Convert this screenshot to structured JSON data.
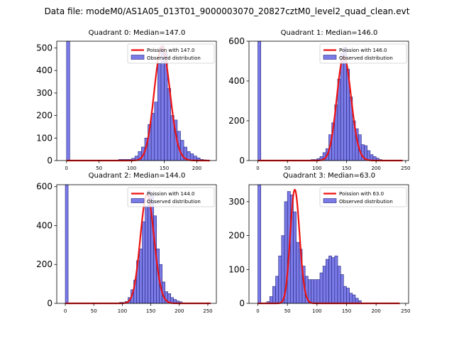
{
  "figure": {
    "suptitle": "Data file: modeM0/AS1A05_013T01_9000003070_20827cztM0_level2_quad_clean.evt"
  },
  "colors": {
    "bar_fill": "#7b7be8",
    "bar_edge": "#24247a",
    "poisson_line": "#ee1111",
    "axis": "#000000"
  },
  "chart_data": [
    {
      "type": "bar",
      "title": "Quadrant 0: Median=147.0",
      "xlim": [
        -15,
        230
      ],
      "ylim": [
        0,
        530
      ],
      "xticks": [
        0,
        50,
        100,
        150,
        200
      ],
      "yticks": [
        0,
        100,
        200,
        300,
        400,
        500
      ],
      "bin_width": 5,
      "bins": [
        {
          "x": 0,
          "y": 530
        },
        {
          "x": 80,
          "y": 5
        },
        {
          "x": 85,
          "y": 5
        },
        {
          "x": 90,
          "y": 5
        },
        {
          "x": 95,
          "y": 5
        },
        {
          "x": 100,
          "y": 10
        },
        {
          "x": 105,
          "y": 20
        },
        {
          "x": 110,
          "y": 40
        },
        {
          "x": 115,
          "y": 60
        },
        {
          "x": 120,
          "y": 100
        },
        {
          "x": 125,
          "y": 160
        },
        {
          "x": 130,
          "y": 210
        },
        {
          "x": 135,
          "y": 260
        },
        {
          "x": 140,
          "y": 430
        },
        {
          "x": 145,
          "y": 510
        },
        {
          "x": 150,
          "y": 480
        },
        {
          "x": 155,
          "y": 320
        },
        {
          "x": 160,
          "y": 200
        },
        {
          "x": 165,
          "y": 180
        },
        {
          "x": 170,
          "y": 130
        },
        {
          "x": 175,
          "y": 90
        },
        {
          "x": 180,
          "y": 60
        },
        {
          "x": 185,
          "y": 40
        },
        {
          "x": 190,
          "y": 30
        },
        {
          "x": 195,
          "y": 20
        },
        {
          "x": 200,
          "y": 12
        },
        {
          "x": 205,
          "y": 5
        },
        {
          "x": 210,
          "y": 3
        }
      ],
      "poisson": {
        "mean": 147.0,
        "x_range": [
          0,
          220
        ],
        "label": "Poission with 147.0",
        "peak": 505
      },
      "legend": [
        "Poission with 147.0",
        "Observed distribution"
      ]
    },
    {
      "type": "bar",
      "title": "Quadrant 1: Median=146.0",
      "xlim": [
        -15,
        255
      ],
      "ylim": [
        0,
        600
      ],
      "xticks": [
        0,
        50,
        100,
        150,
        200,
        250
      ],
      "yticks": [
        0,
        200,
        400,
        600
      ],
      "bin_width": 5,
      "bins": [
        {
          "x": 0,
          "y": 600
        },
        {
          "x": 90,
          "y": 5
        },
        {
          "x": 95,
          "y": 5
        },
        {
          "x": 100,
          "y": 10
        },
        {
          "x": 105,
          "y": 20
        },
        {
          "x": 110,
          "y": 40
        },
        {
          "x": 115,
          "y": 60
        },
        {
          "x": 120,
          "y": 130
        },
        {
          "x": 125,
          "y": 190
        },
        {
          "x": 130,
          "y": 280
        },
        {
          "x": 135,
          "y": 410
        },
        {
          "x": 140,
          "y": 540
        },
        {
          "x": 145,
          "y": 570
        },
        {
          "x": 150,
          "y": 460
        },
        {
          "x": 155,
          "y": 320
        },
        {
          "x": 160,
          "y": 200
        },
        {
          "x": 165,
          "y": 160
        },
        {
          "x": 170,
          "y": 130
        },
        {
          "x": 175,
          "y": 80
        },
        {
          "x": 180,
          "y": 75
        },
        {
          "x": 185,
          "y": 50
        },
        {
          "x": 190,
          "y": 30
        },
        {
          "x": 195,
          "y": 20
        },
        {
          "x": 200,
          "y": 12
        },
        {
          "x": 205,
          "y": 5
        }
      ],
      "poisson": {
        "mean": 146.0,
        "x_range": [
          0,
          245
        ],
        "label": "Poission with 146.0",
        "peak": 525
      },
      "legend": [
        "Poission with 146.0",
        "Observed distribution"
      ]
    },
    {
      "type": "bar",
      "title": "Quadrant 2: Median=144.0",
      "xlim": [
        -15,
        265
      ],
      "ylim": [
        0,
        610
      ],
      "xticks": [
        0,
        50,
        100,
        150,
        200,
        250
      ],
      "yticks": [
        0,
        200,
        400,
        600
      ],
      "bin_width": 5,
      "bins": [
        {
          "x": 0,
          "y": 610
        },
        {
          "x": 95,
          "y": 5
        },
        {
          "x": 100,
          "y": 5
        },
        {
          "x": 105,
          "y": 10
        },
        {
          "x": 110,
          "y": 30
        },
        {
          "x": 115,
          "y": 70
        },
        {
          "x": 120,
          "y": 120
        },
        {
          "x": 125,
          "y": 220
        },
        {
          "x": 130,
          "y": 280
        },
        {
          "x": 135,
          "y": 420
        },
        {
          "x": 140,
          "y": 500
        },
        {
          "x": 145,
          "y": 580
        },
        {
          "x": 150,
          "y": 560
        },
        {
          "x": 155,
          "y": 450
        },
        {
          "x": 160,
          "y": 280
        },
        {
          "x": 165,
          "y": 200
        },
        {
          "x": 170,
          "y": 110
        },
        {
          "x": 175,
          "y": 60
        },
        {
          "x": 180,
          "y": 50
        },
        {
          "x": 185,
          "y": 30
        },
        {
          "x": 190,
          "y": 20
        },
        {
          "x": 195,
          "y": 12
        },
        {
          "x": 200,
          "y": 8
        }
      ],
      "poisson": {
        "mean": 144.0,
        "x_range": [
          0,
          255
        ],
        "label": "Poission with 144.0",
        "peak": 560
      },
      "legend": [
        "Poission with 144.0",
        "Observed distribution"
      ]
    },
    {
      "type": "bar",
      "title": "Quadrant 3: Median=63.0",
      "xlim": [
        -15,
        255
      ],
      "ylim": [
        0,
        350
      ],
      "xticks": [
        0,
        50,
        100,
        150,
        200,
        250
      ],
      "yticks": [
        0,
        100,
        200,
        300
      ],
      "bin_width": 5,
      "bins": [
        {
          "x": 0,
          "y": 350
        },
        {
          "x": 15,
          "y": 5
        },
        {
          "x": 20,
          "y": 20
        },
        {
          "x": 25,
          "y": 50
        },
        {
          "x": 30,
          "y": 80
        },
        {
          "x": 35,
          "y": 140
        },
        {
          "x": 40,
          "y": 200
        },
        {
          "x": 45,
          "y": 300
        },
        {
          "x": 50,
          "y": 330
        },
        {
          "x": 55,
          "y": 320
        },
        {
          "x": 60,
          "y": 270
        },
        {
          "x": 65,
          "y": 180
        },
        {
          "x": 70,
          "y": 160
        },
        {
          "x": 75,
          "y": 110
        },
        {
          "x": 80,
          "y": 80
        },
        {
          "x": 85,
          "y": 70
        },
        {
          "x": 90,
          "y": 70
        },
        {
          "x": 95,
          "y": 70
        },
        {
          "x": 100,
          "y": 70
        },
        {
          "x": 105,
          "y": 90
        },
        {
          "x": 110,
          "y": 110
        },
        {
          "x": 115,
          "y": 130
        },
        {
          "x": 120,
          "y": 140
        },
        {
          "x": 125,
          "y": 135
        },
        {
          "x": 130,
          "y": 140
        },
        {
          "x": 135,
          "y": 110
        },
        {
          "x": 140,
          "y": 85
        },
        {
          "x": 145,
          "y": 50
        },
        {
          "x": 150,
          "y": 45
        },
        {
          "x": 155,
          "y": 30
        },
        {
          "x": 160,
          "y": 25
        },
        {
          "x": 165,
          "y": 15
        },
        {
          "x": 170,
          "y": 8
        }
      ],
      "poisson": {
        "mean": 63.0,
        "x_range": [
          0,
          240
        ],
        "label": "Poission with 63.0",
        "peak": 335
      },
      "legend": [
        "Poission with 63.0",
        "Observed distribution"
      ]
    }
  ]
}
